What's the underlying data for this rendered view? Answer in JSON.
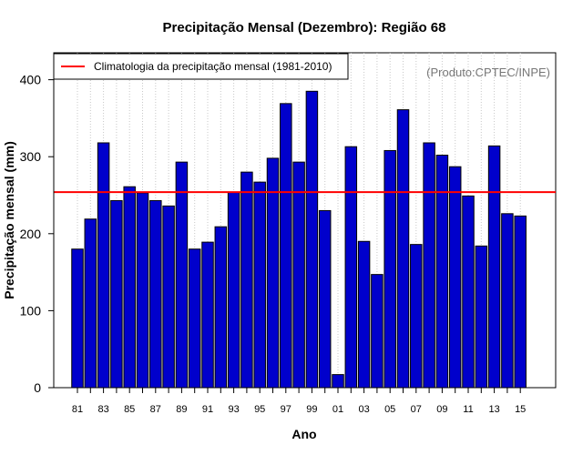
{
  "chart_data": {
    "type": "bar",
    "title": "Precipitação Mensal (Dezembro): Região 68",
    "xlabel": "Ano",
    "ylabel": "Precipitação mensal (mm)",
    "credit": "(Produto:CPTEC/INPE)",
    "ylim": [
      0,
      435
    ],
    "yticks": [
      0,
      100,
      200,
      300,
      400
    ],
    "grid": "vertical-dotted",
    "legend_position": "top-left",
    "categories": [
      "1981",
      "1982",
      "1983",
      "1984",
      "1985",
      "1986",
      "1987",
      "1988",
      "1989",
      "1990",
      "1991",
      "1992",
      "1993",
      "1994",
      "1995",
      "1996",
      "1997",
      "1998",
      "1999",
      "2000",
      "2001",
      "2002",
      "2003",
      "2004",
      "2005",
      "2006",
      "2007",
      "2008",
      "2009",
      "2010",
      "2011",
      "2012",
      "2013",
      "2014",
      "2015"
    ],
    "tick_labels": [
      "81",
      "83",
      "85",
      "87",
      "89",
      "91",
      "93",
      "95",
      "97",
      "99",
      "01",
      "03",
      "05",
      "07",
      "09",
      "11",
      "13",
      "15"
    ],
    "series": [
      {
        "name": "Precipitação mensal",
        "color": "#0000cc",
        "values": [
          180,
          219,
          318,
          243,
          261,
          253,
          243,
          236,
          293,
          180,
          189,
          209,
          254,
          280,
          267,
          298,
          369,
          293,
          385,
          230,
          17,
          313,
          190,
          147,
          308,
          361,
          186,
          318,
          302,
          287,
          249,
          184,
          314,
          226,
          223
        ]
      }
    ],
    "reference_line": {
      "label": "Climatologia da precipitação mensal (1981-2010)",
      "value": 254,
      "color": "#ff0000"
    }
  }
}
